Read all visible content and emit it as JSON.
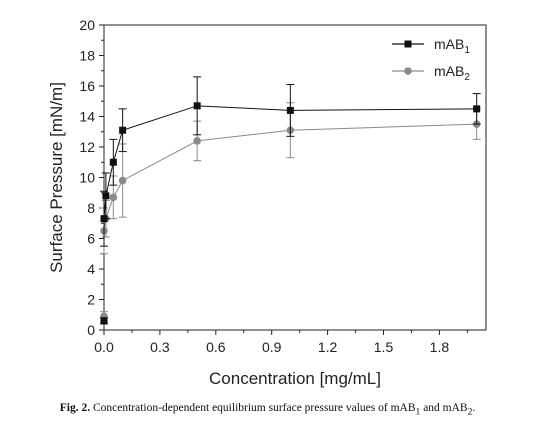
{
  "chart_data": {
    "type": "line",
    "xlabel": "Concentration [mg/mL]",
    "ylabel": "Surface Pressure [mN/m]",
    "xlim": [
      0,
      2.05
    ],
    "ylim": [
      0,
      20
    ],
    "xticks": [
      "0.0",
      "0.3",
      "0.6",
      "0.9",
      "1.2",
      "1.5",
      "1.8"
    ],
    "xtick_values": [
      0,
      0.3,
      0.6,
      0.9,
      1.2,
      1.5,
      1.8
    ],
    "yticks": [
      "0",
      "2",
      "4",
      "6",
      "8",
      "10",
      "12",
      "14",
      "16",
      "18",
      "20"
    ],
    "ytick_values": [
      0,
      2,
      4,
      6,
      8,
      10,
      12,
      14,
      16,
      18,
      20
    ],
    "grid": false,
    "legend_position": "top-right",
    "series": [
      {
        "name": "mAB",
        "name_sub": "1",
        "color": "#111111",
        "marker": "square",
        "x": [
          0.0,
          0.0,
          0.01,
          0.05,
          0.1,
          0.5,
          1.0,
          2.0
        ],
        "y": [
          0.6,
          7.3,
          8.8,
          11.0,
          13.1,
          14.7,
          14.4,
          14.5
        ],
        "err": [
          0.2,
          1.8,
          1.5,
          1.5,
          1.4,
          1.9,
          1.7,
          1.0
        ]
      },
      {
        "name": "mAB",
        "name_sub": "2",
        "color": "#8a8a8a",
        "marker": "circle",
        "x": [
          0.0,
          0.0,
          0.01,
          0.05,
          0.1,
          0.5,
          1.0,
          2.0
        ],
        "y": [
          0.9,
          6.5,
          7.3,
          8.7,
          9.8,
          12.4,
          13.1,
          13.5
        ],
        "err": [
          0.3,
          1.5,
          1.2,
          1.4,
          2.4,
          1.3,
          1.8,
          1.0
        ]
      }
    ]
  },
  "caption": {
    "label": "Fig. 2.",
    "text_before": " Concentration-dependent equilibrium surface pressure values of mAB",
    "sub1": "1",
    "text_middle": " and mAB",
    "sub2": "2",
    "text_after": "."
  }
}
